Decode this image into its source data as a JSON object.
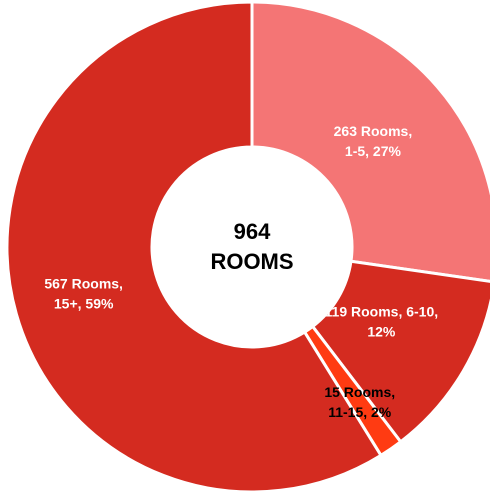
{
  "chart_data": {
    "type": "donut",
    "categories": [
      "1-5",
      "6-10",
      "11-15",
      "15+"
    ],
    "values": [
      263,
      119,
      15,
      567
    ],
    "value_labels": [
      [
        "263 Rooms,",
        "1-5, 27%"
      ],
      [
        "119 Rooms, 6-10,",
        "12%"
      ],
      [
        "15 Rooms,",
        "11-15, 2%"
      ],
      [
        "567 Rooms,",
        "15+, 59%"
      ]
    ],
    "colors": [
      "#f47575",
      "#d42b20",
      "#ff3b12",
      "#d42b20"
    ],
    "label_colors": [
      "#ffffff",
      "#ffffff",
      "#000000",
      "#ffffff"
    ],
    "center_label": [
      "964",
      "ROOMS"
    ]
  }
}
